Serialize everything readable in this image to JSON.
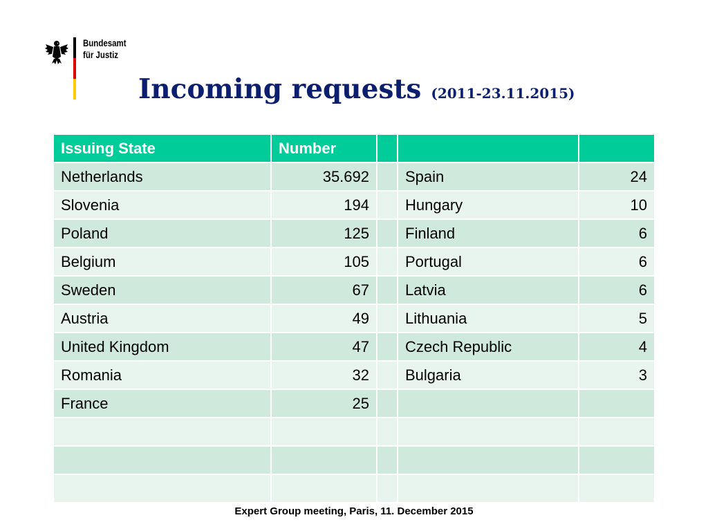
{
  "logo": {
    "line1": "Bundesamt",
    "line2": "für Justiz",
    "flag_colors": [
      "#000000",
      "#dd0000",
      "#ffcc00"
    ]
  },
  "title": {
    "main": "Incoming requests",
    "sub": "(2011-23.11.2015)"
  },
  "table": {
    "headers": [
      "Issuing State",
      "Number",
      "",
      "",
      ""
    ],
    "rows": [
      [
        "Netherlands",
        "35.692",
        "",
        "Spain",
        "24"
      ],
      [
        "Slovenia",
        "194",
        "",
        "Hungary",
        "10"
      ],
      [
        "Poland",
        "125",
        "",
        "Finland",
        "6"
      ],
      [
        "Belgium",
        "105",
        "",
        "Portugal",
        "6"
      ],
      [
        "Sweden",
        "67",
        "",
        "Latvia",
        "6"
      ],
      [
        "Austria",
        "49",
        "",
        "Lithuania",
        "5"
      ],
      [
        "United Kingdom",
        "47",
        "",
        "Czech Republic",
        "4"
      ],
      [
        "Romania",
        "32",
        "",
        "Bulgaria",
        "3"
      ],
      [
        "France",
        "25",
        "",
        "",
        ""
      ],
      [
        "",
        "",
        "",
        "",
        ""
      ],
      [
        "",
        "",
        "",
        "",
        ""
      ],
      [
        "",
        "",
        "",
        "",
        ""
      ]
    ],
    "colors": {
      "header": "#00cc99",
      "row_odd": "#cfeadd",
      "row_even": "#e8f5ee"
    }
  },
  "footer": "Expert Group meeting, Paris, 11. December 2015"
}
